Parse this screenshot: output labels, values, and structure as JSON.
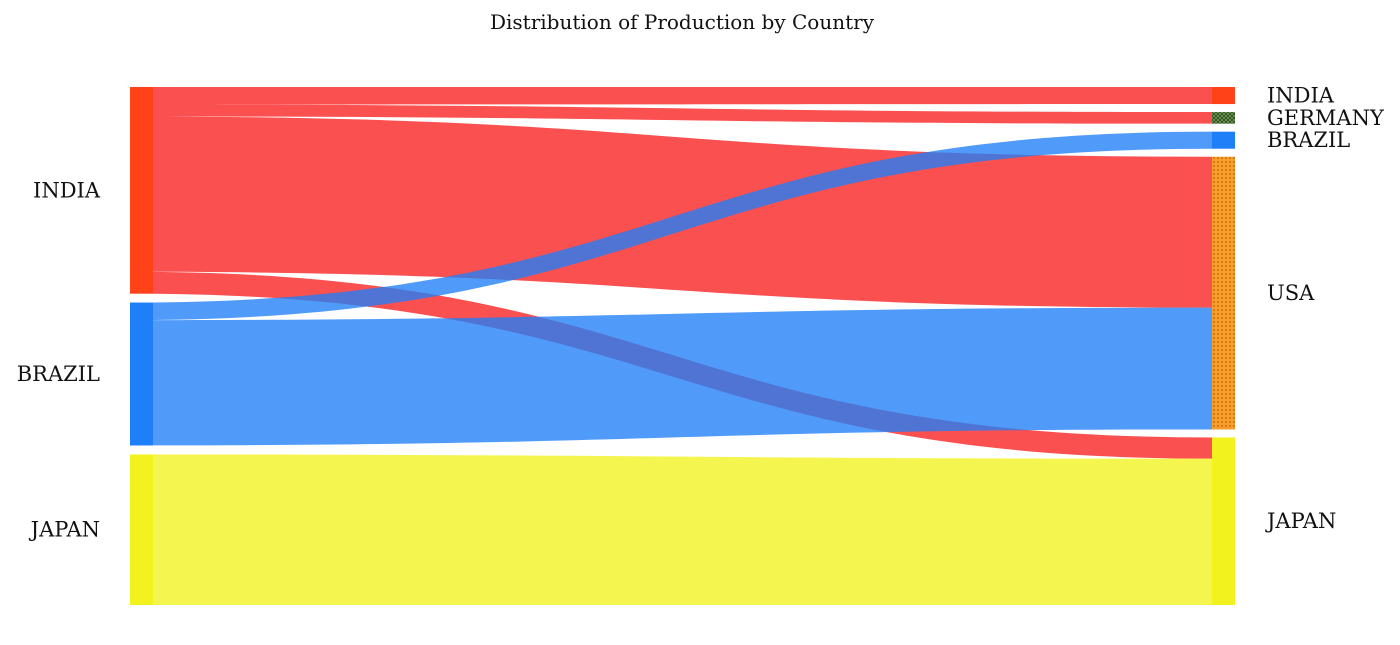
{
  "chart_data": {
    "type": "sankey",
    "title": "Distribution of Production by Country",
    "sources": [
      {
        "name": "INDIA",
        "color": "#F81F1F",
        "bar_color": "#FF4218"
      },
      {
        "name": "BRAZIL",
        "color": "#1F7FF8",
        "bar_color": "#1F7FF8"
      },
      {
        "name": "JAPAN",
        "color": "#F2F21F",
        "bar_color": "#F2F21F"
      }
    ],
    "targets": [
      {
        "name": "INDIA",
        "bar_color": "#FF4218",
        "pattern": "solid"
      },
      {
        "name": "GERMANY",
        "bar_color": "#4A7A3A",
        "pattern": "crosshatch"
      },
      {
        "name": "BRAZIL",
        "bar_color": "#1F7FF8",
        "pattern": "solid"
      },
      {
        "name": "USA",
        "bar_color": "#F59F2A",
        "pattern": "dotted"
      },
      {
        "name": "JAPAN",
        "bar_color": "#F2F21F",
        "pattern": "solid"
      }
    ],
    "flows": [
      {
        "source": "INDIA",
        "target": "INDIA",
        "value": 4.1
      },
      {
        "source": "INDIA",
        "target": "GERMANY",
        "value": 2.8
      },
      {
        "source": "INDIA",
        "target": "USA",
        "value": 36.3
      },
      {
        "source": "INDIA",
        "target": "JAPAN",
        "value": 5.1
      },
      {
        "source": "BRAZIL",
        "target": "BRAZIL",
        "value": 4.1
      },
      {
        "source": "BRAZIL",
        "target": "USA",
        "value": 29.3
      },
      {
        "source": "JAPAN",
        "target": "JAPAN",
        "value": 35.2
      }
    ]
  }
}
